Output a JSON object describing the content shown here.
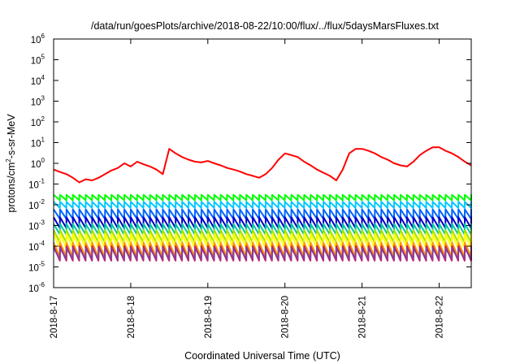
{
  "chart_data": {
    "type": "line",
    "title": "/data/run/goesPlots/archive/2018-08-22/10:00/flux/../flux/5daysMarsFluxes.txt",
    "xlabel": "Coordinated Universal Time (UTC)",
    "ylabel_parts": [
      "protons/cm",
      "2",
      "-s-sr-MeV"
    ],
    "y_scale": "log",
    "ylim": [
      1e-06,
      1000000.0
    ],
    "y_tick_exponents": [
      -6,
      -5,
      -4,
      -3,
      -2,
      -1,
      0,
      1,
      2,
      3,
      4,
      5,
      6
    ],
    "y_tick_base": "10",
    "x_start_day": "2018-8-17",
    "x_end_day": "2018-8-22T10:00",
    "x_ticks": [
      "2018-8-17",
      "2018-8-18",
      "2018-8-19",
      "2018-8-20",
      "2018-8-21",
      "2018-8-22"
    ],
    "grid": false,
    "legend": "none",
    "sawtooth_period_hours": 2,
    "series": [
      {
        "color": "#ff0000",
        "sawtooth_drop_ratio": 1,
        "points": [
          [
            "2018-8-17T00:00",
            0.5
          ],
          [
            "2018-8-17T02:00",
            0.38
          ],
          [
            "2018-8-17T04:00",
            0.3
          ],
          [
            "2018-8-17T06:00",
            0.2
          ],
          [
            "2018-8-17T08:00",
            0.12
          ],
          [
            "2018-8-17T10:00",
            0.17
          ],
          [
            "2018-8-17T12:00",
            0.15
          ],
          [
            "2018-8-17T14:00",
            0.2
          ],
          [
            "2018-8-17T16:00",
            0.3
          ],
          [
            "2018-8-17T18:00",
            0.45
          ],
          [
            "2018-8-17T20:00",
            0.6
          ],
          [
            "2018-8-17T22:00",
            1.0
          ],
          [
            "2018-8-18T00:00",
            0.7
          ],
          [
            "2018-8-18T02:00",
            1.2
          ],
          [
            "2018-8-18T04:00",
            0.9
          ],
          [
            "2018-8-18T06:00",
            0.7
          ],
          [
            "2018-8-18T08:00",
            0.5
          ],
          [
            "2018-8-18T10:00",
            0.3
          ],
          [
            "2018-8-18T12:00",
            5.0
          ],
          [
            "2018-8-18T14:00",
            3.0
          ],
          [
            "2018-8-18T16:00",
            2.0
          ],
          [
            "2018-8-18T18:00",
            1.5
          ],
          [
            "2018-8-18T20:00",
            1.2
          ],
          [
            "2018-8-18T22:00",
            1.1
          ],
          [
            "2018-8-19T00:00",
            1.3
          ],
          [
            "2018-8-19T02:00",
            1.0
          ],
          [
            "2018-8-19T04:00",
            0.8
          ],
          [
            "2018-8-19T06:00",
            0.6
          ],
          [
            "2018-8-19T08:00",
            0.5
          ],
          [
            "2018-8-19T10:00",
            0.4
          ],
          [
            "2018-8-19T12:00",
            0.3
          ],
          [
            "2018-8-19T14:00",
            0.25
          ],
          [
            "2018-8-19T16:00",
            0.2
          ],
          [
            "2018-8-19T18:00",
            0.3
          ],
          [
            "2018-8-19T20:00",
            0.6
          ],
          [
            "2018-8-19T22:00",
            1.5
          ],
          [
            "2018-8-20T00:00",
            3.0
          ],
          [
            "2018-8-20T02:00",
            2.5
          ],
          [
            "2018-8-20T04:00",
            2.0
          ],
          [
            "2018-8-20T06:00",
            1.2
          ],
          [
            "2018-8-20T08:00",
            0.8
          ],
          [
            "2018-8-20T10:00",
            0.5
          ],
          [
            "2018-8-20T12:00",
            0.35
          ],
          [
            "2018-8-20T14:00",
            0.25
          ],
          [
            "2018-8-20T16:00",
            0.15
          ],
          [
            "2018-8-20T18:00",
            0.5
          ],
          [
            "2018-8-20T20:00",
            3.0
          ],
          [
            "2018-8-20T22:00",
            5.0
          ],
          [
            "2018-8-21T00:00",
            5.0
          ],
          [
            "2018-8-21T02:00",
            4.0
          ],
          [
            "2018-8-21T04:00",
            3.0
          ],
          [
            "2018-8-21T06:00",
            2.0
          ],
          [
            "2018-8-21T08:00",
            1.5
          ],
          [
            "2018-8-21T10:00",
            1.0
          ],
          [
            "2018-8-21T12:00",
            0.8
          ],
          [
            "2018-8-21T14:00",
            0.7
          ],
          [
            "2018-8-21T16:00",
            1.2
          ],
          [
            "2018-8-21T18:00",
            2.5
          ],
          [
            "2018-8-21T20:00",
            4.0
          ],
          [
            "2018-8-21T22:00",
            6.0
          ],
          [
            "2018-8-22T00:00",
            6.0
          ],
          [
            "2018-8-22T02:00",
            4.0
          ],
          [
            "2018-8-22T04:00",
            3.0
          ],
          [
            "2018-8-22T06:00",
            2.0
          ],
          [
            "2018-8-22T08:00",
            1.2
          ],
          [
            "2018-8-22T10:00",
            0.8
          ]
        ]
      },
      {
        "color": "#00ff00",
        "top_value": 0.03,
        "sawtooth_drop_ratio": 0.55
      },
      {
        "color": "#00c8ff",
        "top_value": 0.014,
        "sawtooth_drop_ratio": 0.5
      },
      {
        "color": "#0064ff",
        "top_value": 0.006,
        "sawtooth_drop_ratio": 0.35
      },
      {
        "color": "#0000c8",
        "top_value": 0.0025,
        "sawtooth_drop_ratio": 0.3
      },
      {
        "color": "#00c8a0",
        "top_value": 0.0012,
        "sawtooth_drop_ratio": 0.3
      },
      {
        "color": "#a0e000",
        "top_value": 0.0006,
        "sawtooth_drop_ratio": 0.25
      },
      {
        "color": "#ffff00",
        "top_value": 0.0004,
        "sawtooth_drop_ratio": 0.2
      },
      {
        "color": "#ff9600",
        "top_value": 0.00015,
        "sawtooth_drop_ratio": 0.2
      },
      {
        "color": "#c81e64",
        "top_value": 0.0001,
        "sawtooth_drop_ratio": 0.2
      },
      {
        "color": "#8c3c96",
        "top_value": 8e-05,
        "sawtooth_drop_ratio": 0.3
      }
    ]
  }
}
